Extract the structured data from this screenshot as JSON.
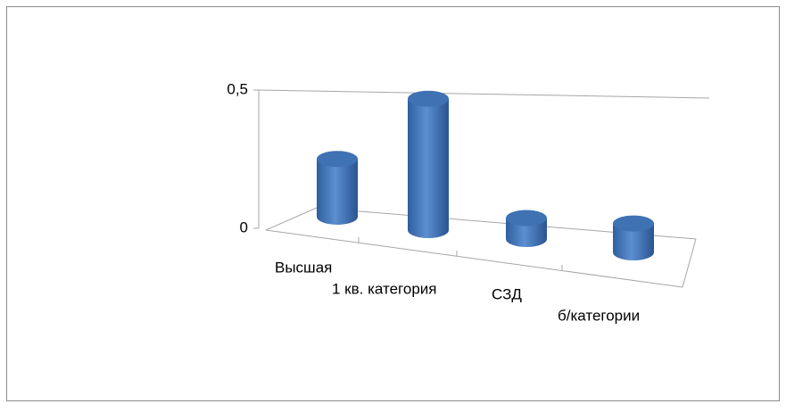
{
  "chart_data": {
    "type": "bar3d",
    "categories": [
      "Высшая",
      "1 кв. категория",
      "СЗД",
      "б/категории"
    ],
    "values": [
      0.22,
      0.5,
      0.08,
      0.11
    ],
    "color": "#4a7ebb",
    "ylim": [
      0,
      0.5
    ],
    "yticks": [
      0,
      {
        "value": 0.5,
        "label": "0,5"
      }
    ]
  }
}
